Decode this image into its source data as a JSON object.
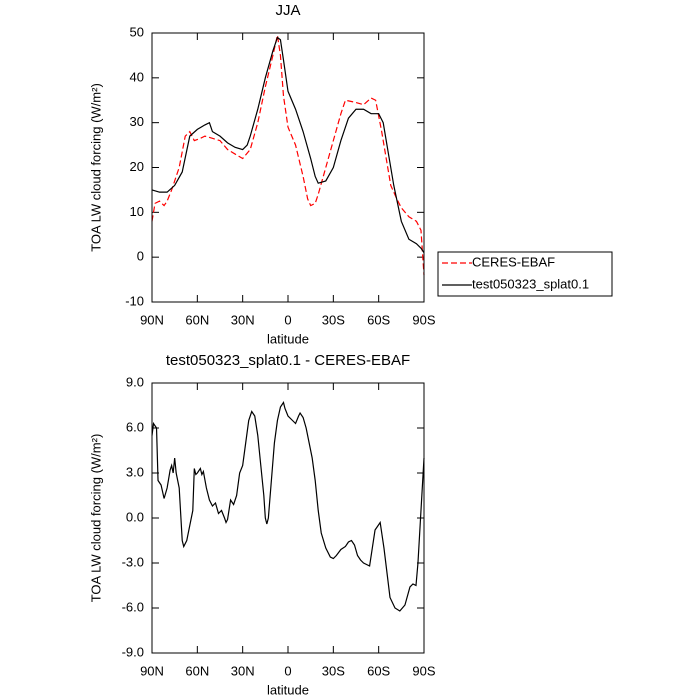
{
  "chart_data": [
    {
      "type": "line",
      "title": "JJA",
      "xlabel": "latitude",
      "ylabel": "TOA LW cloud forcing (W/m²)",
      "xlim": [
        90,
        -90
      ],
      "xticks": [
        {
          "value": 90,
          "label": "90N"
        },
        {
          "value": 60,
          "label": "60N"
        },
        {
          "value": 30,
          "label": "30N"
        },
        0,
        {
          "value": -30,
          "label": "30S"
        },
        {
          "value": -60,
          "label": "60S"
        },
        {
          "value": -90,
          "label": "90S"
        }
      ],
      "ylim": [
        -10,
        50
      ],
      "yticks": [
        50,
        40,
        30,
        20,
        10,
        0,
        -10
      ],
      "legend": "right",
      "series": [
        {
          "name": "CERES-EBAF",
          "color": "#ff0000",
          "linestyle": "dashed",
          "x": [
            90,
            88,
            85,
            82,
            80,
            77,
            72,
            68,
            65,
            62,
            58,
            55,
            50,
            45,
            40,
            35,
            30,
            25,
            20,
            15,
            10,
            7,
            5,
            3,
            0,
            -5,
            -10,
            -13,
            -15,
            -18,
            -20,
            -25,
            -30,
            -35,
            -38,
            -45,
            -50,
            -55,
            -58,
            -62,
            -65,
            -68,
            -72,
            -75,
            -80,
            -85,
            -88,
            -90
          ],
          "values": [
            8,
            12,
            12.5,
            11.5,
            12.5,
            15,
            20,
            27,
            28,
            26,
            26.5,
            27,
            26.5,
            26,
            24,
            23,
            22,
            24,
            30,
            38,
            45,
            49.5,
            45,
            36,
            29,
            25,
            18,
            13,
            11.5,
            12,
            14,
            20,
            26,
            32,
            35,
            34.5,
            34,
            35.5,
            35,
            28,
            22,
            16,
            13,
            11,
            9,
            8,
            6,
            -4
          ]
        },
        {
          "name": "test050323_splat0.1",
          "color": "#000000",
          "linestyle": "solid",
          "x": [
            90,
            85,
            80,
            75,
            70,
            65,
            60,
            55,
            52,
            50,
            45,
            40,
            35,
            30,
            27,
            25,
            20,
            15,
            10,
            7,
            5,
            3,
            0,
            -5,
            -10,
            -15,
            -18,
            -20,
            -25,
            -30,
            -35,
            -40,
            -45,
            -50,
            -55,
            -60,
            -63,
            -65,
            -70,
            -75,
            -80,
            -85,
            -88,
            -90
          ],
          "values": [
            15,
            14.5,
            14.5,
            16,
            19,
            27,
            28.5,
            29.5,
            30,
            28,
            27,
            25.5,
            24.5,
            24,
            25,
            27,
            33,
            40,
            46,
            49,
            48.5,
            44,
            37,
            33,
            28,
            22,
            18,
            16.5,
            17,
            20,
            26,
            31,
            33,
            33,
            32,
            32,
            30,
            26,
            16,
            8,
            4,
            3,
            2,
            1
          ]
        }
      ]
    },
    {
      "type": "line",
      "title": "test050323_splat0.1 - CERES-EBAF",
      "xlabel": "latitude",
      "ylabel": "TOA LW cloud forcing (W/m²)",
      "xlim": [
        90,
        -90
      ],
      "xticks": [
        {
          "value": 90,
          "label": "90N"
        },
        {
          "value": 60,
          "label": "60N"
        },
        {
          "value": 30,
          "label": "30N"
        },
        0,
        {
          "value": -30,
          "label": "30S"
        },
        {
          "value": -60,
          "label": "60S"
        },
        {
          "value": -90,
          "label": "90S"
        }
      ],
      "ylim": [
        -9,
        9
      ],
      "yticks": [
        {
          "value": 9,
          "label": "9.0"
        },
        {
          "value": 6,
          "label": "6.0"
        },
        {
          "value": 3,
          "label": "3.0"
        },
        {
          "value": 0,
          "label": "0.0"
        },
        {
          "value": -3,
          "label": "-3.0"
        },
        {
          "value": -6,
          "label": "-6.0"
        },
        {
          "value": -9,
          "label": "-9.0"
        }
      ],
      "color": "#000000",
      "x": [
        90,
        89,
        87,
        86,
        84,
        82,
        80,
        78,
        77,
        76,
        75,
        74,
        72,
        70,
        69,
        67,
        65,
        63,
        62,
        61,
        60,
        58,
        57,
        56,
        54,
        52,
        50,
        48,
        46,
        44,
        42,
        41,
        40,
        38,
        36,
        34,
        32,
        30,
        28,
        26,
        24,
        22,
        20,
        18,
        16,
        15,
        14,
        13,
        11,
        9,
        7,
        5,
        3,
        2,
        0,
        -3,
        -5,
        -7,
        -8,
        -10,
        -12,
        -14,
        -16,
        -18,
        -20,
        -22,
        -25,
        -28,
        -30,
        -32,
        -35,
        -38,
        -40,
        -42,
        -44,
        -46,
        -48,
        -50,
        -54,
        -57.6,
        -61,
        -63.5,
        -67.5,
        -70.8,
        -74,
        -77.4,
        -80.7,
        -82.7,
        -84.7,
        -86,
        -88,
        -90
      ],
      "values": [
        5.5,
        6.3,
        6,
        2.5,
        2.2,
        1.3,
        2,
        3.2,
        3.5,
        3,
        4,
        3,
        2,
        -1.5,
        -1.9,
        -1.5,
        -0.5,
        0.5,
        3.3,
        2.9,
        3,
        3.3,
        2.9,
        3.1,
        2,
        1.2,
        0.8,
        1,
        0.3,
        0.5,
        0,
        -0.3,
        -0.1,
        1.2,
        0.9,
        1.5,
        3,
        3.5,
        5,
        6.5,
        7.1,
        6.8,
        5.5,
        3.5,
        1.5,
        0,
        -0.4,
        0,
        2.5,
        5,
        6.5,
        7.4,
        7.7,
        7.3,
        6.8,
        6.5,
        6.3,
        6.8,
        7,
        6.7,
        6,
        5,
        4,
        2.5,
        0.5,
        -1,
        -2,
        -2.6,
        -2.7,
        -2.5,
        -2.1,
        -1.9,
        -1.6,
        -1.5,
        -1.8,
        -2.5,
        -2.8,
        -3,
        -3.2,
        -0.8,
        -0.3,
        -2,
        -5.3,
        -6,
        -6.2,
        -5.8,
        -4.6,
        -4.4,
        -4.5,
        -3,
        0.5,
        4
      ]
    }
  ]
}
